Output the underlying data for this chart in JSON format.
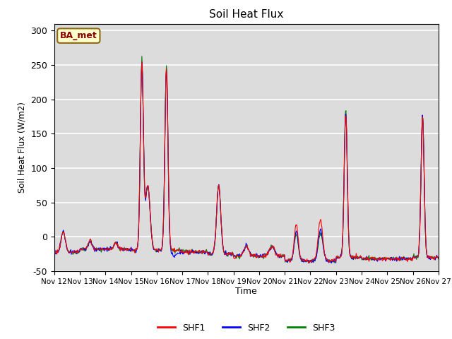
{
  "title": "Soil Heat Flux",
  "ylabel": "Soil Heat Flux (W/m2)",
  "xlabel": "Time",
  "ylim": [
    -50,
    310
  ],
  "yticks": [
    -50,
    0,
    50,
    100,
    150,
    200,
    250,
    300
  ],
  "x_labels": [
    "Nov 12",
    "Nov 13",
    "Nov 14",
    "Nov 15",
    "Nov 16",
    "Nov 17",
    "Nov 18",
    "Nov 19",
    "Nov 20",
    "Nov 21",
    "Nov 22",
    "Nov 23",
    "Nov 24",
    "Nov 25",
    "Nov 26",
    "Nov 27"
  ],
  "annotation": "BA_met",
  "annotation_color": "#8B0000",
  "annotation_bg": "#FFFFCC",
  "annotation_edge": "#8B6914",
  "series_colors": [
    "red",
    "blue",
    "green"
  ],
  "series_labels": [
    "SHF1",
    "SHF2",
    "SHF3"
  ],
  "bg_color": "#DCDCDC",
  "line_width": 0.8,
  "figsize": [
    6.4,
    4.8
  ],
  "dpi": 100
}
